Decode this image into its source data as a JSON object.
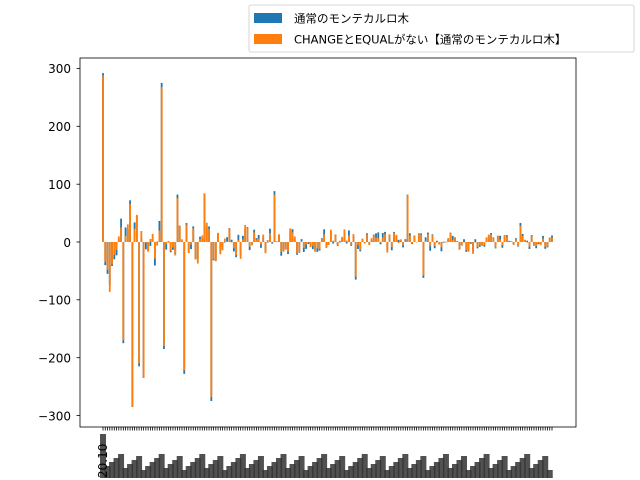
{
  "chart_data": {
    "type": "bar",
    "title": "",
    "xlabel": "",
    "ylabel": "",
    "ylim": [
      -320,
      320
    ],
    "yticks": [
      -300,
      -200,
      -100,
      0,
      100,
      200,
      300
    ],
    "ytick_labels": [
      "−300",
      "−200",
      "−100",
      "0",
      "100",
      "200",
      "300"
    ],
    "grid": false,
    "legend_placement": "top-right, outside plot",
    "n_bars": 200,
    "x_tick_labels_note": "overlapping rotated category labels, illegible",
    "first_x_tick_label": "20.10",
    "colors": {
      "series_0": "#1f77b4",
      "series_1": "#ff7f0e"
    },
    "series": [
      {
        "name": "通常のモンテカルロ木",
        "color": "#1f77b4"
      },
      {
        "name": "CHANGEとEQUALがない【通常のモンテカルロ木】",
        "color": "#ff7f0e"
      }
    ]
  }
}
